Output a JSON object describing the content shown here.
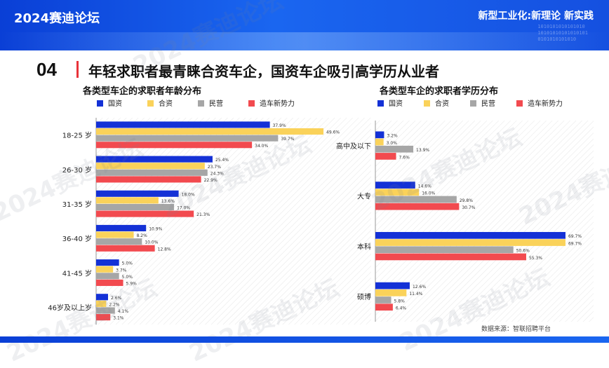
{
  "header": {
    "brand": "2024赛迪论坛",
    "slogan": "新型工业化:新理论 新实践",
    "binary_text": "1010101010101010\n10101010101010101\n0101010101010"
  },
  "section": {
    "number": "04",
    "headline": "年轻求职者最青睐合资车企，国资车企吸引高学历从业者"
  },
  "watermark": "2024赛迪论坛",
  "source": "数据来源：智联招聘平台",
  "colors": {
    "国资": "#1431d6",
    "合资": "#fad25a",
    "民营": "#a6a6a6",
    "造车新势力": "#f24a4f",
    "banner": "#1a66f0",
    "accent": "#e8333a"
  },
  "chart_data": [
    {
      "type": "bar",
      "orientation": "horizontal",
      "title": "各类型车企的求职者年龄分布",
      "legend_position": "top",
      "categories": [
        "18-25 岁",
        "26-30 岁",
        "31-35 岁",
        "36-40 岁",
        "41-45 岁",
        "46岁及以上岁"
      ],
      "series": [
        {
          "name": "国资",
          "values": [
            37.9,
            25.4,
            18.0,
            10.9,
            5.0,
            2.6
          ],
          "labels": [
            "37.9%",
            "25.4%",
            "18.0%",
            "10.9%",
            "5.0%",
            "2.6%"
          ]
        },
        {
          "name": "合资",
          "values": [
            49.6,
            23.7,
            13.6,
            8.2,
            3.7,
            2.2
          ],
          "labels": [
            "49.6%",
            "23.7%",
            "13.6%",
            "8.2%",
            "3.7%",
            "2.2%"
          ]
        },
        {
          "name": "民营",
          "values": [
            39.7,
            24.3,
            17.0,
            10.0,
            5.0,
            4.1
          ],
          "labels": [
            "39.7%",
            "24.3%",
            "17.0%",
            "10.0%",
            "5.0%",
            "4.1%"
          ]
        },
        {
          "name": "造车新势力",
          "values": [
            34.0,
            22.9,
            21.3,
            12.8,
            5.9,
            3.1
          ],
          "labels": [
            "34.0%",
            "22.9%",
            "21.3%",
            "12.8%",
            "5.9%",
            "3.1%"
          ]
        }
      ],
      "xlim": [
        0,
        60
      ]
    },
    {
      "type": "bar",
      "orientation": "horizontal",
      "title": "各类型车企的求职者学历分布",
      "legend_position": "top",
      "categories": [
        "高中及以下",
        "大专",
        "本科",
        "硕博"
      ],
      "series": [
        {
          "name": "国资",
          "values": [
            3.2,
            14.6,
            69.7,
            12.6
          ],
          "labels": [
            "3.2%",
            "14.6%",
            "69.7%",
            "12.6%"
          ]
        },
        {
          "name": "合资",
          "values": [
            3.0,
            16.0,
            69.7,
            11.4
          ],
          "labels": [
            "3.0%",
            "16.0%",
            "69.7%",
            "11.4%"
          ]
        },
        {
          "name": "民营",
          "values": [
            13.9,
            29.8,
            50.6,
            5.8
          ],
          "labels": [
            "13.9%",
            "29.8%",
            "50.6%",
            "5.8%"
          ]
        },
        {
          "name": "造车新势力",
          "values": [
            7.6,
            30.7,
            55.3,
            6.4
          ],
          "labels": [
            "7.6%",
            "30.7%",
            "55.3%",
            "6.4%"
          ]
        }
      ],
      "xlim": [
        0,
        80
      ]
    }
  ]
}
